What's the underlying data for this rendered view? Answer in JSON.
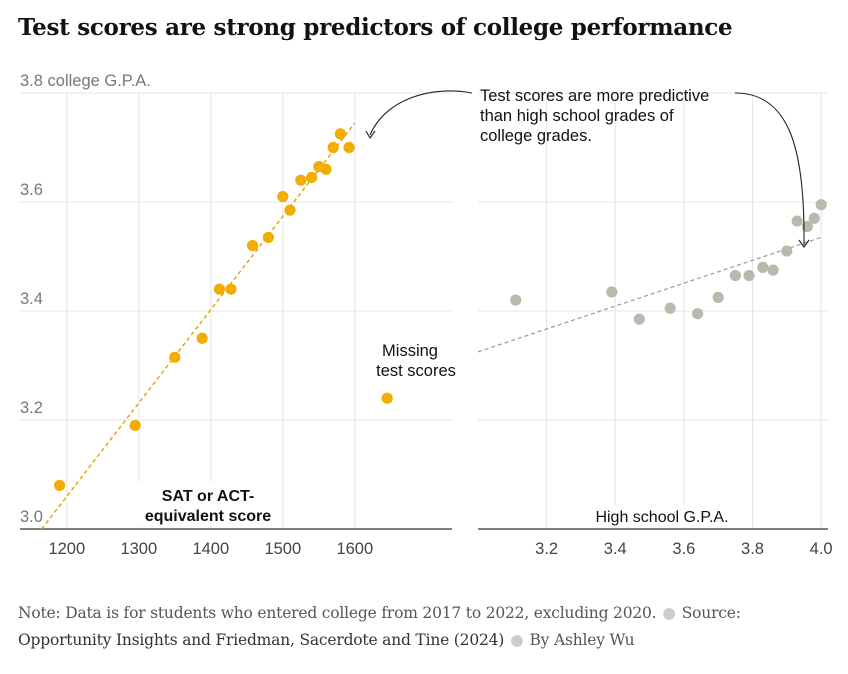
{
  "title": "Test scores are strong predictors of college performance",
  "annotations": {
    "predictive_line1": "Test scores are more predictive",
    "predictive_line2": "than high school grades of",
    "predictive_line3": "college grades.",
    "missing_line1": "Missing",
    "missing_line2": "test scores"
  },
  "footer": {
    "note": "Note: Data is for students who entered college from 2017 to 2022, excluding 2020.",
    "source_label": "Source:",
    "source": "Opportunity Insights and Friedman, Sacerdote and Tine (2024)",
    "byline": "By Ashley Wu"
  },
  "colors": {
    "test": "#f2ad00",
    "hs": "#b6bbae",
    "grid": "#e4e4e4",
    "axis": "#333333",
    "text": "#666666"
  },
  "chart_data": [
    {
      "type": "scatter",
      "xlabel": "SAT or ACT-equivalent score",
      "ylabel": "college G.P.A.",
      "xticks": [
        1200,
        1300,
        1400,
        1500,
        1600
      ],
      "yticks": [
        3.0,
        3.2,
        3.4,
        3.6,
        3.8
      ],
      "ytick_labels": [
        "3.0",
        "3.2",
        "3.4",
        "3.6",
        "3.8 college G.P.A."
      ],
      "xlim": [
        1135,
        1735
      ],
      "ylim": [
        3.0,
        3.8
      ],
      "points": [
        {
          "x": 1190,
          "y": 3.08
        },
        {
          "x": 1295,
          "y": 3.19
        },
        {
          "x": 1350,
          "y": 3.315
        },
        {
          "x": 1388,
          "y": 3.35
        },
        {
          "x": 1412,
          "y": 3.44
        },
        {
          "x": 1428,
          "y": 3.44
        },
        {
          "x": 1458,
          "y": 3.52
        },
        {
          "x": 1480,
          "y": 3.535
        },
        {
          "x": 1500,
          "y": 3.61
        },
        {
          "x": 1510,
          "y": 3.585
        },
        {
          "x": 1525,
          "y": 3.64
        },
        {
          "x": 1540,
          "y": 3.645
        },
        {
          "x": 1550,
          "y": 3.665
        },
        {
          "x": 1560,
          "y": 3.66
        },
        {
          "x": 1570,
          "y": 3.7
        },
        {
          "x": 1580,
          "y": 3.725
        },
        {
          "x": 1592,
          "y": 3.7
        }
      ],
      "missing_point": {
        "x": 1645,
        "y": 3.24
      },
      "trendline": [
        {
          "x": 1165,
          "y": 3.0
        },
        {
          "x": 1600,
          "y": 3.745
        }
      ]
    },
    {
      "type": "scatter",
      "xlabel": "High school G.P.A.",
      "xticks": [
        3.2,
        3.4,
        3.6,
        3.8,
        4.0
      ],
      "xtick_labels": [
        "3.2",
        "3.4",
        "3.6",
        "3.8",
        "4.0"
      ],
      "xlim": [
        3.0,
        4.02
      ],
      "ylim": [
        3.0,
        3.8
      ],
      "points": [
        {
          "x": 3.11,
          "y": 3.42
        },
        {
          "x": 3.39,
          "y": 3.435
        },
        {
          "x": 3.47,
          "y": 3.385
        },
        {
          "x": 3.56,
          "y": 3.405
        },
        {
          "x": 3.64,
          "y": 3.395
        },
        {
          "x": 3.7,
          "y": 3.425
        },
        {
          "x": 3.75,
          "y": 3.465
        },
        {
          "x": 3.79,
          "y": 3.465
        },
        {
          "x": 3.83,
          "y": 3.48
        },
        {
          "x": 3.86,
          "y": 3.475
        },
        {
          "x": 3.9,
          "y": 3.51
        },
        {
          "x": 3.93,
          "y": 3.565
        },
        {
          "x": 3.96,
          "y": 3.555
        },
        {
          "x": 3.98,
          "y": 3.57
        },
        {
          "x": 4.0,
          "y": 3.595
        }
      ],
      "trendline": [
        {
          "x": 3.0,
          "y": 3.325
        },
        {
          "x": 4.0,
          "y": 3.535
        }
      ]
    }
  ]
}
